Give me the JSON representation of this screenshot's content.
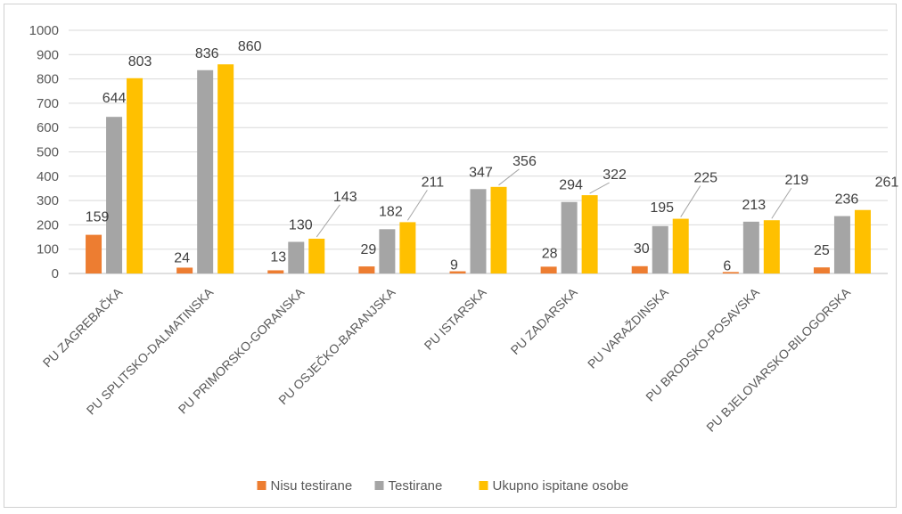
{
  "chart_data": {
    "type": "bar",
    "categories": [
      "PU ZAGREBAČKA",
      "PU SPLITSKO-DALMATINSKA",
      "PU PRIMORSKO-GORANSKA",
      "PU OSJEČKO-BARANJSKA",
      "PU ISTARSKA",
      "PU ZADARSKA",
      "PU VARAŽDINSKA",
      "PU BRODSKO-POSAVSKA",
      "PU BJELOVARSKO-BILOGORSKA"
    ],
    "series": [
      {
        "name": "Nisu testirane",
        "color": "#ED7D31",
        "values": [
          159,
          24,
          13,
          29,
          9,
          28,
          30,
          6,
          25
        ]
      },
      {
        "name": "Testirane",
        "color": "#A5A5A5",
        "values": [
          644,
          836,
          130,
          182,
          347,
          294,
          195,
          213,
          236
        ]
      },
      {
        "name": "Ukupno ispitane osobe",
        "color": "#FFC000",
        "values": [
          803,
          860,
          143,
          211,
          356,
          322,
          225,
          219,
          261
        ]
      }
    ],
    "yticks": [
      "0",
      "100",
      "200",
      "300",
      "400",
      "500",
      "600",
      "700",
      "800",
      "900",
      "1000"
    ],
    "ylim": [
      0,
      1000
    ],
    "grid": true,
    "legend_position": "bottom",
    "title": "",
    "xlabel": "",
    "ylabel": ""
  }
}
